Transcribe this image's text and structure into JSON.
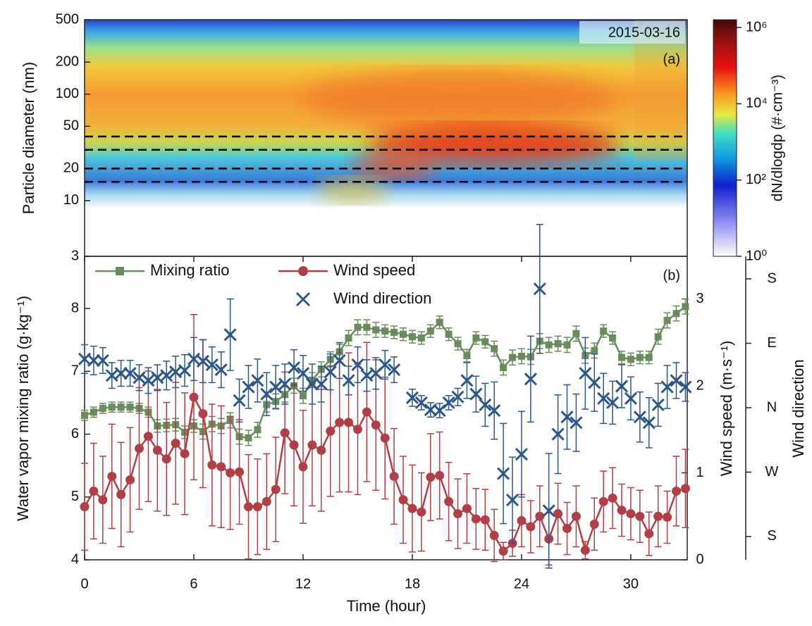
{
  "chart_data": [
    {
      "type": "heatmap",
      "annotation": "2015-03-16",
      "panel_label": "(a)",
      "y_label": "Particle diameter (nm)",
      "xlim": [
        0,
        33.1
      ],
      "ylim": [
        3,
        500
      ],
      "y_log": true,
      "yticks": [
        3,
        10,
        20,
        50,
        100,
        200,
        500
      ],
      "reference_lines": [
        15,
        20,
        30,
        40
      ],
      "colorbar_label": "dN/dlogdp (#·cm⁻³)",
      "clim": [
        1,
        1600000
      ],
      "c_log": true,
      "cticks": [
        {
          "value": 1,
          "label": "10⁰"
        },
        {
          "value": 100,
          "label": "10²"
        },
        {
          "value": 10000,
          "label": "10⁴"
        },
        {
          "value": 1000000,
          "label": "10⁶"
        }
      ]
    },
    {
      "type": "line",
      "panel_label": "(b)",
      "x_label": "Time (hour)",
      "y_label": "Water vapor mixing ratio (g·kg⁻¹)",
      "y2_label": "Wind speed (m·s⁻¹)",
      "y3_label": "Wind direction",
      "xlim": [
        0,
        33.1
      ],
      "xticks": [
        0,
        6,
        12,
        18,
        24,
        30
      ],
      "ylim": [
        4,
        8.83
      ],
      "yticks": [
        4,
        5,
        6,
        7,
        8
      ],
      "y2lim": [
        0,
        3.49
      ],
      "y2ticks": [
        0,
        1,
        2,
        3
      ],
      "y3lim": [
        -212.5,
        211.5
      ],
      "y3ticks": [
        {
          "value": -180,
          "label": "S"
        },
        {
          "value": -90,
          "label": "W"
        },
        {
          "value": 0,
          "label": "N"
        },
        {
          "value": 90,
          "label": "E"
        },
        {
          "value": 180,
          "label": "S"
        }
      ],
      "legend": "top-left",
      "series": [
        {
          "name": "Mixing ratio",
          "color": "#6a8c5c",
          "marker": "square",
          "axis": "y",
          "x": [
            0,
            0.5,
            1,
            1.5,
            2,
            2.5,
            3,
            3.5,
            4,
            4.5,
            5,
            5.5,
            6,
            6.5,
            7,
            7.5,
            8,
            8.5,
            9,
            9.5,
            10,
            10.5,
            11,
            11.5,
            12,
            12.5,
            13,
            13.5,
            14,
            14.5,
            15,
            15.5,
            16,
            16.5,
            17,
            17.5,
            18,
            18.5,
            19,
            19.5,
            20,
            20.5,
            21,
            21.5,
            22,
            22.5,
            23,
            23.5,
            24,
            24.5,
            25,
            25.5,
            26,
            26.5,
            27,
            27.5,
            28,
            28.5,
            29,
            29.5,
            30,
            30.5,
            31,
            31.5,
            32,
            32.5,
            33
          ],
          "values": [
            6.3,
            6.35,
            6.41,
            6.43,
            6.43,
            6.43,
            6.41,
            6.35,
            6.13,
            6.14,
            6.15,
            6.03,
            6.13,
            6.04,
            6.16,
            6.13,
            6.22,
            5.96,
            5.94,
            6.07,
            6.47,
            6.52,
            6.63,
            6.77,
            6.61,
            6.86,
            7.03,
            7.19,
            7.31,
            7.53,
            7.7,
            7.7,
            7.66,
            7.64,
            7.62,
            7.59,
            7.55,
            7.53,
            7.64,
            7.78,
            7.59,
            7.44,
            7.25,
            7.53,
            7.47,
            7.36,
            7.06,
            7.22,
            7.24,
            7.23,
            7.48,
            7.42,
            7.44,
            7.42,
            7.6,
            7.25,
            7.33,
            7.64,
            7.53,
            7.22,
            7.19,
            7.22,
            7.22,
            7.55,
            7.81,
            7.92,
            8.03
          ],
          "errors": [
            0.08,
            0.08,
            0.08,
            0.08,
            0.08,
            0.08,
            0.08,
            0.08,
            0.1,
            0.1,
            0.1,
            0.1,
            0.1,
            0.12,
            0.12,
            0.12,
            0.12,
            0.12,
            0.12,
            0.12,
            0.12,
            0.12,
            0.12,
            0.12,
            0.12,
            0.12,
            0.12,
            0.12,
            0.12,
            0.12,
            0.12,
            0.12,
            0.12,
            0.1,
            0.1,
            0.1,
            0.1,
            0.1,
            0.1,
            0.1,
            0.1,
            0.1,
            0.1,
            0.1,
            0.1,
            0.12,
            0.12,
            0.12,
            0.12,
            0.12,
            0.12,
            0.12,
            0.12,
            0.12,
            0.12,
            0.12,
            0.12,
            0.1,
            0.1,
            0.1,
            0.1,
            0.1,
            0.1,
            0.12,
            0.12,
            0.12,
            0.12
          ]
        },
        {
          "name": "Wind speed",
          "color": "#b23e47",
          "marker": "circle",
          "axis": "y2",
          "x": [
            0,
            0.5,
            1,
            1.5,
            2,
            2.5,
            3,
            3.5,
            4,
            4.5,
            5,
            5.5,
            6,
            6.5,
            7,
            7.5,
            8,
            8.5,
            9,
            9.5,
            10,
            10.5,
            11,
            11.5,
            12,
            12.5,
            13,
            13.5,
            14,
            14.5,
            15,
            15.5,
            16,
            16.5,
            17,
            17.5,
            18,
            18.5,
            19,
            19.5,
            20,
            20.5,
            21,
            21.5,
            22,
            22.5,
            23,
            23.5,
            24,
            24.5,
            25,
            25.5,
            26,
            26.5,
            27,
            27.5,
            28,
            28.5,
            29,
            29.5,
            30,
            30.5,
            31,
            31.5,
            32,
            32.5,
            33
          ],
          "values": [
            0.61,
            0.79,
            0.69,
            0.96,
            0.75,
            0.92,
            1.28,
            1.42,
            1.26,
            1.16,
            1.34,
            1.22,
            1.87,
            1.68,
            1.09,
            1.07,
            1.0,
            1.01,
            0.61,
            0.61,
            0.67,
            0.81,
            1.46,
            1.32,
            1.07,
            1.32,
            1.26,
            1.48,
            1.58,
            1.58,
            1.5,
            1.7,
            1.55,
            1.4,
            0.96,
            0.69,
            0.59,
            0.55,
            0.95,
            0.97,
            0.67,
            0.53,
            0.59,
            0.47,
            0.46,
            0.28,
            0.1,
            0.19,
            0.45,
            0.38,
            0.5,
            0.24,
            0.53,
            0.36,
            0.5,
            0.11,
            0.41,
            0.67,
            0.71,
            0.57,
            0.53,
            0.5,
            0.3,
            0.5,
            0.49,
            0.79,
            0.82
          ],
          "errors": [
            0.5,
            0.55,
            0.5,
            0.6,
            0.6,
            0.6,
            0.7,
            0.75,
            0.7,
            0.65,
            0.7,
            0.7,
            0.95,
            0.85,
            0.7,
            0.7,
            0.65,
            0.6,
            0.6,
            0.55,
            0.55,
            0.6,
            0.7,
            0.7,
            0.65,
            0.7,
            0.7,
            0.75,
            0.8,
            0.8,
            0.75,
            0.8,
            0.75,
            0.7,
            0.55,
            0.5,
            0.5,
            0.45,
            0.5,
            0.5,
            0.45,
            0.4,
            0.4,
            0.35,
            0.35,
            0.3,
            0.1,
            0.15,
            0.3,
            0.3,
            0.35,
            0.3,
            0.35,
            0.3,
            0.35,
            0.1,
            0.3,
            0.35,
            0.35,
            0.3,
            0.3,
            0.3,
            0.25,
            0.35,
            0.3,
            0.4,
            0.45
          ]
        },
        {
          "name": "Wind direction",
          "color": "#2c5688",
          "marker": "x",
          "axis": "y3",
          "x": [
            0,
            0.5,
            1,
            1.5,
            2,
            2.5,
            3,
            3.5,
            4,
            4.5,
            5,
            5.5,
            6,
            6.5,
            7,
            7.5,
            8,
            8.5,
            9,
            9.5,
            10,
            10.5,
            11,
            11.5,
            12,
            12.5,
            13,
            13.5,
            14,
            14.5,
            15,
            15.5,
            16,
            16.5,
            17,
            18,
            18.5,
            19,
            19.5,
            20,
            20.5,
            21,
            21.5,
            22,
            22.5,
            23,
            23.5,
            24,
            24.5,
            25,
            25.5,
            26,
            26.5,
            27,
            27.5,
            28,
            28.5,
            29,
            29.5,
            30,
            30.5,
            31,
            31.5,
            32,
            32.5,
            33
          ],
          "values": [
            68,
            66,
            66,
            45,
            48,
            48,
            42,
            38,
            42,
            45,
            50,
            52,
            68,
            65,
            60,
            53,
            102,
            10,
            29,
            38,
            19,
            29,
            33,
            56,
            48,
            33,
            33,
            50,
            66,
            38,
            60,
            45,
            48,
            60,
            53,
            14,
            7,
            -3,
            -4,
            7,
            15,
            38,
            19,
            4,
            -4,
            -92,
            -129,
            -65,
            40,
            166,
            -144,
            -37,
            -13,
            -21,
            48,
            35,
            13,
            7,
            30,
            13,
            -13,
            -21,
            4,
            29,
            38,
            29
          ],
          "errors": [
            20,
            20,
            18,
            18,
            18,
            18,
            18,
            18,
            18,
            20,
            22,
            22,
            30,
            30,
            25,
            25,
            50,
            30,
            30,
            30,
            30,
            30,
            28,
            25,
            25,
            28,
            25,
            25,
            25,
            20,
            25,
            22,
            22,
            20,
            18,
            12,
            10,
            10,
            10,
            10,
            12,
            25,
            25,
            30,
            40,
            70,
            60,
            60,
            60,
            90,
            80,
            55,
            45,
            40,
            50,
            40,
            35,
            30,
            30,
            30,
            35,
            35,
            30,
            30,
            25,
            20
          ]
        }
      ]
    }
  ]
}
